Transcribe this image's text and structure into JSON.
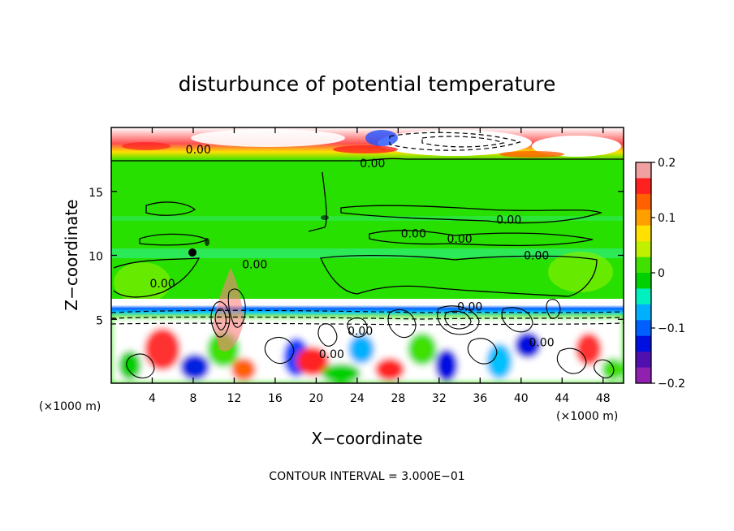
{
  "chart_data": {
    "type": "heatmap",
    "title": "disturbunce of potential temperature",
    "xlabel": "X−coordinate",
    "ylabel": "Z−coordinate",
    "x_unit": "(×1000 m)",
    "y_unit": "(×1000 m)",
    "xlim": [
      0,
      50
    ],
    "ylim": [
      0,
      20
    ],
    "x_ticks": [
      4,
      8,
      12,
      16,
      20,
      24,
      28,
      32,
      36,
      40,
      44,
      48
    ],
    "y_ticks": [
      5,
      10,
      15
    ],
    "colorbar": {
      "range": [
        -0.2,
        0.2
      ],
      "tick_values": [
        0.2,
        0.1,
        0,
        -0.1,
        -0.2
      ],
      "tick_labels": [
        "0.2",
        "0.1",
        "0",
        "−0.1",
        "−0.2"
      ],
      "colors": [
        "#f0a0a0",
        "#ff2020",
        "#ff6000",
        "#ffa000",
        "#ffe000",
        "#c0f000",
        "#40e000",
        "#00d000",
        "#00f0c0",
        "#00b0ff",
        "#0060ff",
        "#0010e0",
        "#5010b0",
        "#9020b0"
      ]
    },
    "contour_labels": [
      {
        "text": "0.00",
        "x": 8.5,
        "z": 18.3
      },
      {
        "text": "0.00",
        "x": 25.5,
        "z": 17.2
      },
      {
        "text": "0.00",
        "x": 38.8,
        "z": 12.8
      },
      {
        "text": "0.00",
        "x": 29.5,
        "z": 11.7
      },
      {
        "text": "0.00",
        "x": 34.0,
        "z": 11.3
      },
      {
        "text": "0.00",
        "x": 41.5,
        "z": 10.0
      },
      {
        "text": "0.00",
        "x": 14.0,
        "z": 9.3
      },
      {
        "text": "0.00",
        "x": 5.0,
        "z": 7.8
      },
      {
        "text": "0.00",
        "x": 35.0,
        "z": 6.0
      },
      {
        "text": "0.00",
        "x": 24.3,
        "z": 4.1
      },
      {
        "text": "0.00",
        "x": 21.5,
        "z": 2.3
      },
      {
        "text": "0.00",
        "x": 42.0,
        "z": 3.2
      }
    ],
    "annotation": "CONTOUR INTERVAL = 3.000E−01"
  }
}
